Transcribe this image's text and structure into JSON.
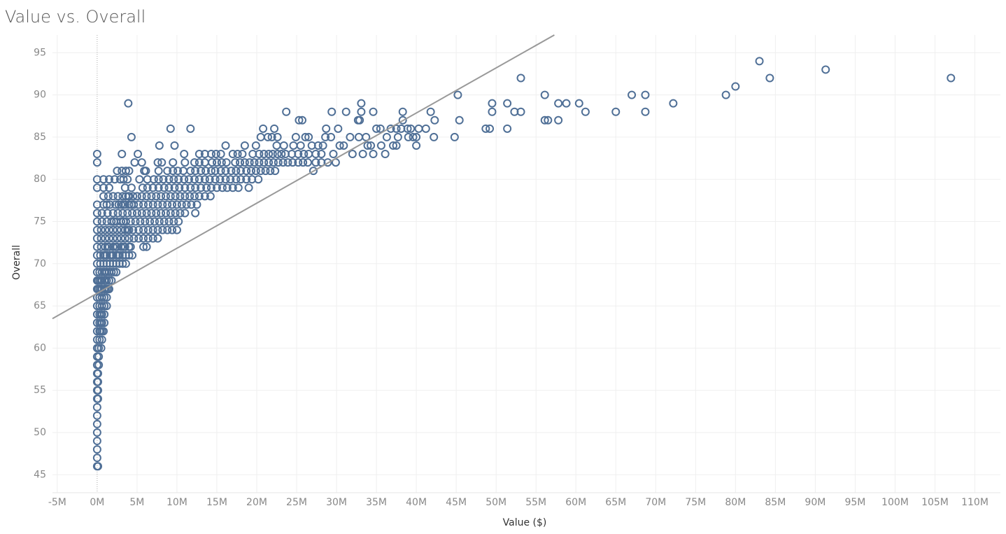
{
  "chart_data": {
    "type": "scatter",
    "title": "Value vs. Overall",
    "x_label": "Value ($)",
    "y_label": "Overall",
    "color": "#4f6f96",
    "grid": true,
    "xlim": [
      -5.6,
      113.2
    ],
    "ylim": [
      43.2,
      97.1
    ],
    "xticks": [
      {
        "value": -5,
        "label": "-5M"
      },
      {
        "value": 0,
        "label": "0M"
      },
      {
        "value": 5,
        "label": "5M"
      },
      {
        "value": 10,
        "label": "10M"
      },
      {
        "value": 15,
        "label": "15M"
      },
      {
        "value": 20,
        "label": "20M"
      },
      {
        "value": 25,
        "label": "25M"
      },
      {
        "value": 30,
        "label": "30M"
      },
      {
        "value": 35,
        "label": "35M"
      },
      {
        "value": 40,
        "label": "40M"
      },
      {
        "value": 45,
        "label": "45M"
      },
      {
        "value": 50,
        "label": "50M"
      },
      {
        "value": 55,
        "label": "55M"
      },
      {
        "value": 60,
        "label": "60M"
      },
      {
        "value": 65,
        "label": "65M"
      },
      {
        "value": 70,
        "label": "70M"
      },
      {
        "value": 75,
        "label": "75M"
      },
      {
        "value": 80,
        "label": "80M"
      },
      {
        "value": 85,
        "label": "85M"
      },
      {
        "value": 90,
        "label": "90M"
      },
      {
        "value": 95,
        "label": "95M"
      },
      {
        "value": 100,
        "label": "100M"
      },
      {
        "value": 105,
        "label": "105M"
      },
      {
        "value": 110,
        "label": "110M"
      }
    ],
    "yticks": [
      45,
      50,
      55,
      60,
      65,
      70,
      75,
      80,
      85,
      90,
      95
    ],
    "trend_line": {
      "color": "#999999",
      "x": [
        -5.6,
        57.3
      ],
      "values": [
        63.5,
        97.1
      ]
    },
    "x": [
      83,
      91.3,
      53.1,
      84.3,
      107,
      80,
      45.2,
      56.1,
      67,
      68.7,
      78.8,
      3.9,
      33.1,
      49.5,
      51.4,
      57.8,
      58.8,
      60.4,
      72.2,
      23.7,
      29.4,
      31.2,
      33.1,
      34.6,
      38.3,
      41.8,
      49.5,
      52.3,
      53.1,
      61.2,
      65,
      68.7,
      25.3,
      25.7,
      32.7,
      32.9,
      38.3,
      42.3,
      45.4,
      56.1,
      56.5,
      57.8,
      9.2,
      11.7,
      20.8,
      22.2,
      28.7,
      30.2,
      35,
      35.5,
      36.8,
      37.5,
      38.1,
      38.9,
      39.3,
      40.3,
      41.2,
      48.7,
      49.2,
      51.4,
      4.3,
      20.5,
      21.4,
      21.9,
      22.6,
      24.9,
      26.1,
      26.5,
      28.6,
      29.3,
      31.7,
      32.8,
      33.7,
      36.3,
      37.7,
      39,
      39.6,
      40,
      42.2,
      44.8,
      7.8,
      9.7,
      16.1,
      18.5,
      19.9,
      22.5,
      23.4,
      24.6,
      25.5,
      26.9,
      27.7,
      28.3,
      30.4,
      30.9,
      33.9,
      34.3,
      35.6,
      37.1,
      37.5,
      40,
      0,
      3.1,
      5.1,
      10.9,
      12.8,
      13.5,
      14.3,
      14.9,
      15.5,
      17,
      17.6,
      18.2,
      19.5,
      20.3,
      20.9,
      21.5,
      22,
      22.6,
      23.1,
      23.6,
      24.4,
      25.2,
      25.9,
      26.5,
      27.4,
      28.1,
      29.6,
      32,
      33.3,
      34.6,
      36.1,
      0,
      4.7,
      5.6,
      7.6,
      8.1,
      9.5,
      11,
      12.2,
      12.8,
      13.5,
      14.4,
      15,
      15.6,
      16.2,
      17.3,
      17.9,
      18.5,
      19.1,
      19.7,
      20.3,
      20.9,
      21.5,
      22.1,
      22.7,
      23.3,
      23.9,
      24.5,
      25.2,
      25.8,
      26.4,
      27.4,
      28.1,
      28.9,
      29.9,
      3.1,
      3.6,
      4,
      5.9,
      6.1,
      7.7,
      8.8,
      9.5,
      10.1,
      10.8,
      11.7,
      12.3,
      13,
      13.6,
      14.3,
      14.8,
      15.5,
      16.1,
      16.8,
      17.4,
      18,
      18.7,
      19.3,
      19.9,
      20.5,
      21.1,
      21.7,
      22.3,
      27.1,
      2.5,
      0,
      0.8,
      1.5,
      2.9,
      3.8,
      5.3,
      6.3,
      7.1,
      7.7,
      8.3,
      9,
      9.6,
      10.2,
      10.9,
      11.5,
      12.2,
      12.8,
      13.5,
      14.1,
      14.8,
      15.4,
      16.1,
      16.7,
      17.4,
      18,
      18.7,
      19.4,
      20.2,
      2.2,
      3.3,
      0,
      0.8,
      1.5,
      3.5,
      4.3,
      5.7,
      6.3,
      7,
      7.7,
      8.4,
      9,
      9.7,
      10.3,
      11,
      11.7,
      12.3,
      13,
      13.7,
      14.3,
      15,
      15.7,
      16.3,
      17,
      17.7,
      19,
      0.8,
      2,
      3.2,
      3.6,
      4,
      4.5,
      5,
      5.6,
      6.2,
      6.8,
      7.4,
      8,
      8.6,
      9.2,
      9.8,
      10.4,
      11,
      11.6,
      12.2,
      12.8,
      13.5,
      14.2,
      2.6,
      1.4,
      3.9,
      0,
      0.8,
      1.6,
      2.3,
      3,
      3.5,
      4,
      4.6,
      5.2,
      5.8,
      6.4,
      7,
      7.6,
      8.2,
      8.8,
      9.4,
      10,
      10.6,
      11.2,
      11.8,
      12.5,
      1.2,
      2.7,
      3.3,
      4.3,
      0,
      0.6,
      1.3,
      2,
      2.6,
      3.2,
      3.8,
      4.4,
      5,
      5.6,
      6.2,
      6.8,
      7.4,
      8,
      8.6,
      9.2,
      9.8,
      10.4,
      11,
      12.3,
      0,
      0.6,
      1.2,
      1.8,
      2.4,
      3,
      3.6,
      4.2,
      4.8,
      5.4,
      6,
      6.6,
      7.2,
      7.8,
      8.4,
      9,
      9.6,
      10.2,
      2.1,
      3.3,
      0,
      0.5,
      1,
      1.5,
      2,
      2.5,
      3,
      3.5,
      4,
      4.5,
      5.2,
      5.8,
      6.4,
      7,
      7.6,
      8.2,
      8.8,
      9.4,
      10,
      3.8,
      0,
      0.5,
      1,
      1.5,
      2,
      2.5,
      3,
      3.5,
      4,
      4.6,
      5.2,
      5.8,
      6.4,
      7,
      7.6,
      0,
      0.5,
      1,
      1.5,
      2,
      2.5,
      3,
      3.5,
      4,
      5.8,
      6.2,
      1.3,
      2.3,
      3.3,
      4.2,
      0,
      0.4,
      0.8,
      1.2,
      1.6,
      2,
      2.4,
      2.8,
      3.2,
      3.6,
      4,
      4.4,
      1,
      1.8,
      2.6,
      0,
      0.4,
      0.8,
      1.2,
      1.6,
      2,
      2.4,
      2.8,
      3.2,
      3.6,
      0,
      0.3,
      0.6,
      0.9,
      1.2,
      1.5,
      1.8,
      2.1,
      2.4,
      1,
      0,
      0.3,
      0.6,
      0.9,
      1.2,
      1.5,
      1.8,
      0.1,
      0.5,
      1,
      0,
      0.3,
      0.6,
      0.9,
      1.2,
      1.5,
      0.1,
      0.5,
      1,
      1.4,
      0,
      0.3,
      0.6,
      0.9,
      1.2,
      0,
      0.3,
      0.6,
      0.9,
      1.2,
      0,
      0.3,
      0.6,
      0.9,
      0.5,
      0,
      0.3,
      0.6,
      0.9,
      0.5,
      0,
      0.3,
      0.6,
      0.8,
      0.4,
      0,
      0.3,
      0.6,
      0,
      0.2,
      0.5,
      0,
      0.2,
      0,
      0.2,
      0,
      0.1,
      0,
      0.1,
      0,
      0.1,
      0,
      0.1,
      0,
      0,
      0,
      0,
      0,
      0,
      0,
      0,
      0.1
    ],
    "values": [
      94,
      93,
      92,
      92,
      92,
      91,
      90,
      90,
      90,
      90,
      90,
      89,
      89,
      89,
      89,
      89,
      89,
      89,
      89,
      88,
      88,
      88,
      88,
      88,
      88,
      88,
      88,
      88,
      88,
      88,
      88,
      88,
      87,
      87,
      87,
      87,
      87,
      87,
      87,
      87,
      87,
      87,
      86,
      86,
      86,
      86,
      86,
      86,
      86,
      86,
      86,
      86,
      86,
      86,
      86,
      86,
      86,
      86,
      86,
      86,
      85,
      85,
      85,
      85,
      85,
      85,
      85,
      85,
      85,
      85,
      85,
      85,
      85,
      85,
      85,
      85,
      85,
      85,
      85,
      85,
      84,
      84,
      84,
      84,
      84,
      84,
      84,
      84,
      84,
      84,
      84,
      84,
      84,
      84,
      84,
      84,
      84,
      84,
      84,
      84,
      83,
      83,
      83,
      83,
      83,
      83,
      83,
      83,
      83,
      83,
      83,
      83,
      83,
      83,
      83,
      83,
      83,
      83,
      83,
      83,
      83,
      83,
      83,
      83,
      83,
      83,
      83,
      83,
      83,
      83,
      83,
      82,
      82,
      82,
      82,
      82,
      82,
      82,
      82,
      82,
      82,
      82,
      82,
      82,
      82,
      82,
      82,
      82,
      82,
      82,
      82,
      82,
      82,
      82,
      82,
      82,
      82,
      82,
      82,
      82,
      82,
      82,
      82,
      82,
      82,
      81,
      81,
      81,
      81,
      81,
      81,
      81,
      81,
      81,
      81,
      81,
      81,
      81,
      81,
      81,
      81,
      81,
      81,
      81,
      81,
      81,
      81,
      81,
      81,
      81,
      81,
      81,
      81,
      81,
      81,
      80,
      80,
      80,
      80,
      80,
      80,
      80,
      80,
      80,
      80,
      80,
      80,
      80,
      80,
      80,
      80,
      80,
      80,
      80,
      80,
      80,
      80,
      80,
      80,
      80,
      80,
      80,
      80,
      80,
      80,
      79,
      79,
      79,
      79,
      79,
      79,
      79,
      79,
      79,
      79,
      79,
      79,
      79,
      79,
      79,
      79,
      79,
      79,
      79,
      79,
      79,
      79,
      79,
      79,
      79,
      78,
      78,
      78,
      78,
      78,
      78,
      78,
      78,
      78,
      78,
      78,
      78,
      78,
      78,
      78,
      78,
      78,
      78,
      78,
      78,
      78,
      78,
      78,
      78,
      78,
      77,
      77,
      77,
      77,
      77,
      77,
      77,
      77,
      77,
      77,
      77,
      77,
      77,
      77,
      77,
      77,
      77,
      77,
      77,
      77,
      77,
      77,
      77,
      77,
      77,
      76,
      76,
      76,
      76,
      76,
      76,
      76,
      76,
      76,
      76,
      76,
      76,
      76,
      76,
      76,
      76,
      76,
      76,
      76,
      76,
      75,
      75,
      75,
      75,
      75,
      75,
      75,
      75,
      75,
      75,
      75,
      75,
      75,
      75,
      75,
      75,
      75,
      75,
      75,
      75,
      74,
      74,
      74,
      74,
      74,
      74,
      74,
      74,
      74,
      74,
      74,
      74,
      74,
      74,
      74,
      74,
      74,
      74,
      74,
      74,
      73,
      73,
      73,
      73,
      73,
      73,
      73,
      73,
      73,
      73,
      73,
      73,
      73,
      73,
      73,
      72,
      72,
      72,
      72,
      72,
      72,
      72,
      72,
      72,
      72,
      72,
      72,
      72,
      72,
      72,
      71,
      71,
      71,
      71,
      71,
      71,
      71,
      71,
      71,
      71,
      71,
      71,
      71,
      71,
      71,
      70,
      70,
      70,
      70,
      70,
      70,
      70,
      70,
      70,
      70,
      69,
      69,
      69,
      69,
      69,
      69,
      69,
      69,
      69,
      69,
      68,
      68,
      68,
      68,
      68,
      68,
      68,
      68,
      68,
      68,
      67,
      67,
      67,
      67,
      67,
      67,
      67,
      67,
      67,
      67,
      66,
      66,
      66,
      66,
      66,
      65,
      65,
      65,
      65,
      65,
      64,
      64,
      64,
      64,
      64,
      63,
      63,
      63,
      63,
      63,
      62,
      62,
      62,
      62,
      62,
      61,
      61,
      61,
      60,
      60,
      60,
      59,
      59,
      58,
      58,
      57,
      57,
      56,
      56,
      55,
      55,
      54,
      54,
      53,
      52,
      51,
      50,
      49,
      48,
      47,
      46,
      46
    ]
  }
}
